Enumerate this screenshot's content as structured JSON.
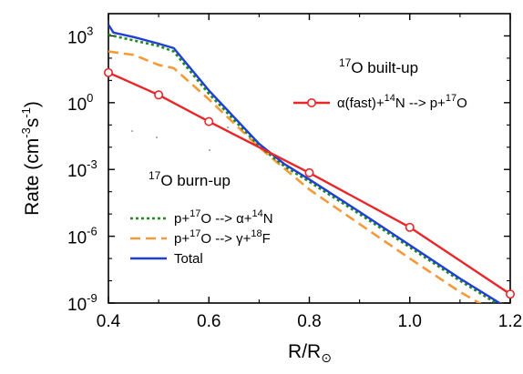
{
  "chart_data": {
    "type": "line",
    "xlabel": "R/R",
    "xlabel_sub": "⊙",
    "ylabel": "Rate (cm",
    "ylabel_sup1": "-3",
    "ylabel_mid": "s",
    "ylabel_sup2": "-1",
    "ylabel_end": ")",
    "xlim": [
      0.4,
      1.2
    ],
    "ylim_log10": [
      -9,
      4
    ],
    "y_scale": "log",
    "x_ticks": [
      {
        "value": 0.4,
        "label": "0.4"
      },
      {
        "value": 0.6,
        "label": "0.6"
      },
      {
        "value": 0.8,
        "label": "0.8"
      },
      {
        "value": 1.0,
        "label": "1.0"
      },
      {
        "value": 1.2,
        "label": "1.2"
      }
    ],
    "y_ticks": [
      {
        "exp": 3,
        "base": "10",
        "sup": "3"
      },
      {
        "exp": 0,
        "base": "10",
        "sup": "0"
      },
      {
        "exp": -3,
        "base": "10",
        "sup": "-3"
      },
      {
        "exp": -6,
        "base": "10",
        "sup": "-6"
      },
      {
        "exp": -9,
        "base": "10",
        "sup": "-9"
      }
    ],
    "annotations": {
      "built_up": {
        "sup": "17",
        "text": "O built-up"
      },
      "burn_up": {
        "sup": "17",
        "text": "O burn-up"
      }
    },
    "series": [
      {
        "key": "alpha_fast",
        "name_parts": [
          [
            "α(fast)+",
            ""
          ],
          [
            "14",
            "sup"
          ],
          [
            "N --> p+",
            ""
          ],
          [
            "17",
            "sup"
          ],
          [
            "O",
            ""
          ]
        ],
        "color": "#e8272a",
        "style": "solid-markers",
        "x": [
          0.4,
          0.5,
          0.6,
          0.8,
          1.0,
          1.2
        ],
        "log10_y": [
          1.35,
          0.35,
          -0.85,
          -3.15,
          -5.6,
          -8.6
        ]
      },
      {
        "key": "p_alpha",
        "name_parts": [
          [
            "p+",
            ""
          ],
          [
            "17",
            "sup"
          ],
          [
            "O --> α+",
            ""
          ],
          [
            "14",
            "sup"
          ],
          [
            "N",
            ""
          ]
        ],
        "color": "#1e8a1e",
        "style": "dotted",
        "x": [
          0.4,
          0.45,
          0.5,
          0.53,
          0.6,
          0.7,
          0.75,
          0.8,
          0.9,
          1.0,
          1.1,
          1.2
        ],
        "log10_y": [
          3.05,
          2.8,
          2.55,
          2.3,
          0.4,
          -1.95,
          -2.85,
          -3.55,
          -5.0,
          -6.5,
          -8.0,
          -9.4
        ]
      },
      {
        "key": "p_gamma",
        "name_parts": [
          [
            "p+",
            ""
          ],
          [
            "17",
            "sup"
          ],
          [
            "O --> γ+",
            ""
          ],
          [
            "18",
            "sup"
          ],
          [
            "F",
            ""
          ]
        ],
        "color": "#f59a38",
        "style": "dashed",
        "x": [
          0.4,
          0.45,
          0.5,
          0.53,
          0.6,
          0.7,
          0.75,
          0.8,
          0.9,
          1.0,
          1.1,
          1.2
        ],
        "log10_y": [
          2.3,
          2.15,
          1.7,
          1.55,
          0.15,
          -2.0,
          -2.95,
          -3.9,
          -5.45,
          -7.0,
          -8.5,
          -9.8
        ]
      },
      {
        "key": "total",
        "name_parts": [
          [
            "Total",
            ""
          ]
        ],
        "color": "#1f3fd6",
        "style": "solid",
        "x": [
          0.4,
          0.41,
          0.45,
          0.5,
          0.53,
          0.6,
          0.7,
          0.75,
          0.8,
          0.9,
          1.0,
          1.1,
          1.2
        ],
        "log10_y": [
          3.5,
          3.15,
          2.95,
          2.65,
          2.45,
          0.55,
          -1.85,
          -2.75,
          -3.45,
          -4.9,
          -6.4,
          -7.9,
          -9.3
        ]
      }
    ],
    "legend_built": [
      "alpha_fast"
    ],
    "legend_burn": [
      "p_alpha",
      "p_gamma",
      "total"
    ]
  }
}
